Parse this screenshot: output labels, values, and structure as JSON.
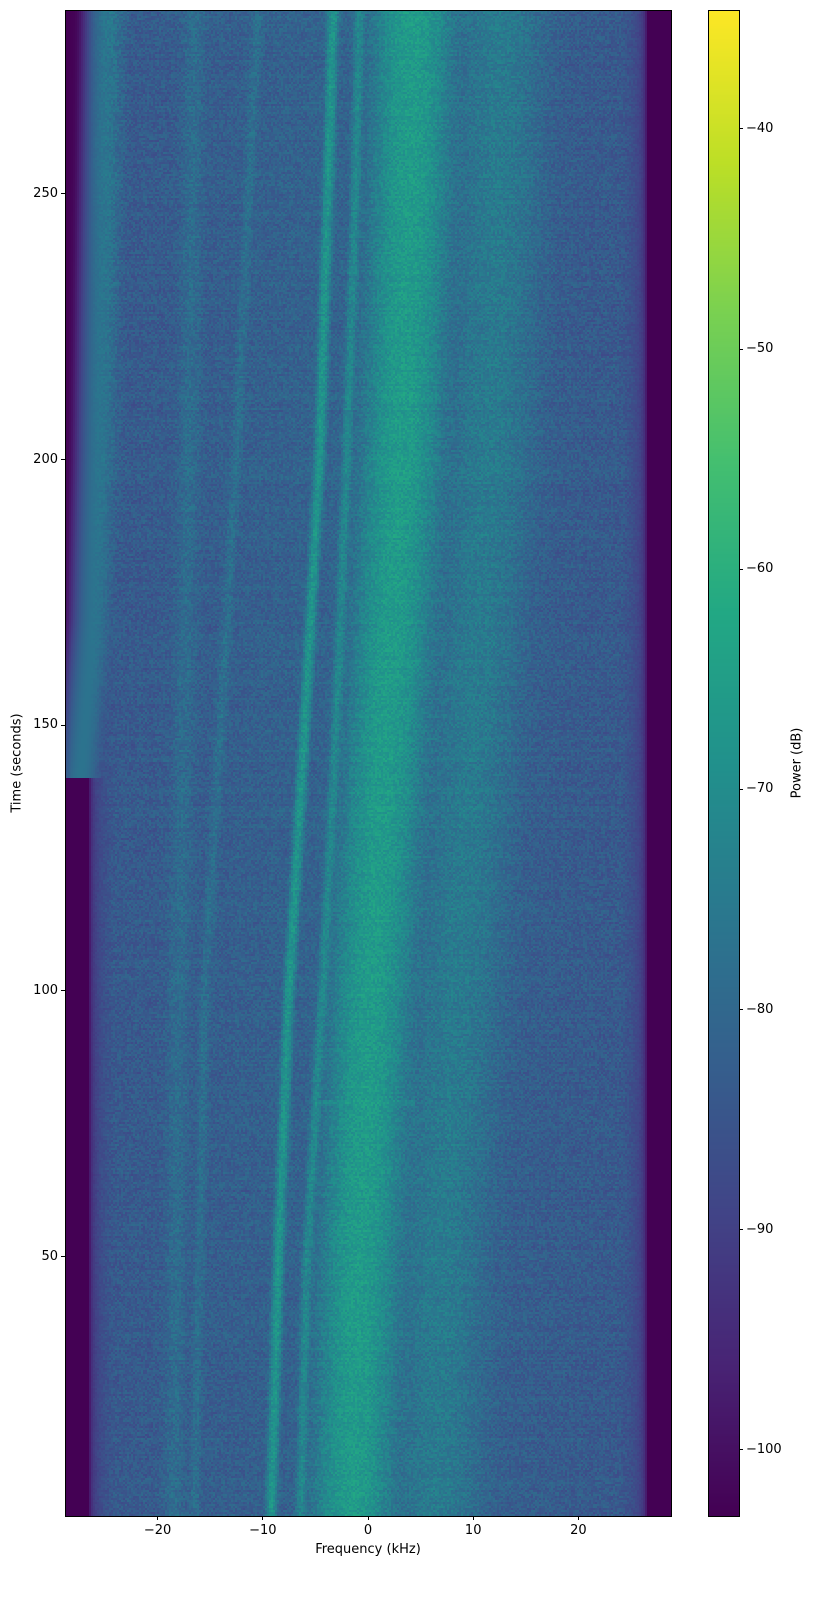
{
  "chart_data": {
    "type": "heatmap",
    "title": "",
    "xlabel": "Frequency (kHz)",
    "ylabel": "Time (seconds)",
    "colorbar_label": "Power (dB)",
    "colormap": "viridis",
    "xlim": [
      -28.8,
      28.8
    ],
    "ylim": [
      1.2,
      284.6
    ],
    "clim": [
      -103,
      -34.6
    ],
    "xticks": [
      -20,
      -10,
      0,
      10,
      20
    ],
    "xtick_labels": [
      "−20",
      "−10",
      "0",
      "10",
      "20"
    ],
    "yticks": [
      50,
      100,
      150,
      200,
      250
    ],
    "ytick_labels": [
      "50",
      "100",
      "150",
      "200",
      "250"
    ],
    "cticks": [
      -40,
      -50,
      -60,
      -70,
      -80,
      -90,
      -100
    ],
    "ctick_labels": [
      "−40",
      "−50",
      "−60",
      "−70",
      "−80",
      "−90",
      "−100"
    ],
    "noise_floor_db": -85,
    "out_of_band_db": -103,
    "passband_khz": [
      -26,
      26
    ],
    "grid": false,
    "features": [
      {
        "kind": "carrier",
        "power_db": -66,
        "width_khz": 1.6,
        "track": [
          [
            1,
            -1.5
          ],
          [
            50,
            -0.8
          ],
          [
            100,
            0.3
          ],
          [
            150,
            1.8
          ],
          [
            200,
            3.2
          ],
          [
            250,
            4.0
          ],
          [
            284,
            4.3
          ]
        ]
      },
      {
        "kind": "band",
        "power_db": -76,
        "width_khz": 2.2,
        "track": [
          [
            1,
            6.5
          ],
          [
            50,
            7.0
          ],
          [
            100,
            8.5
          ],
          [
            150,
            10.0
          ],
          [
            200,
            11.5
          ],
          [
            250,
            12.3
          ],
          [
            284,
            12.5
          ]
        ]
      },
      {
        "kind": "line",
        "power_db": -68,
        "width_khz": 0.25,
        "track": [
          [
            1,
            -9.2
          ],
          [
            50,
            -8.5
          ],
          [
            100,
            -7.5
          ],
          [
            150,
            -6.0
          ],
          [
            200,
            -4.6
          ],
          [
            250,
            -3.8
          ],
          [
            284,
            -3.3
          ]
        ]
      },
      {
        "kind": "line",
        "power_db": -72,
        "width_khz": 0.25,
        "track": [
          [
            1,
            -6.4
          ],
          [
            50,
            -5.8
          ],
          [
            100,
            -4.3
          ],
          [
            150,
            -3.0
          ],
          [
            200,
            -2.0
          ],
          [
            250,
            -1.2
          ],
          [
            284,
            -0.8
          ]
        ]
      },
      {
        "kind": "line",
        "power_db": -80,
        "width_khz": 0.3,
        "track": [
          [
            1,
            -16.5
          ],
          [
            100,
            -15.5
          ],
          [
            200,
            -12.5
          ],
          [
            284,
            -10.5
          ]
        ]
      },
      {
        "kind": "line",
        "power_db": -81,
        "width_khz": 0.6,
        "track": [
          [
            1,
            -18.5
          ],
          [
            100,
            -18.0
          ],
          [
            200,
            -17.0
          ],
          [
            284,
            -16.5
          ]
        ]
      },
      {
        "kind": "edge",
        "power_db": -77,
        "width_khz": 0.8,
        "track": [
          [
            140,
            -27.3
          ],
          [
            170,
            -26.0
          ],
          [
            200,
            -25.5
          ],
          [
            250,
            -25.0
          ],
          [
            284,
            -24.7
          ]
        ]
      },
      {
        "kind": "burst",
        "power_db": -74,
        "time_s": 79,
        "freq_khz": [
          -5,
          4.5
        ]
      }
    ]
  }
}
